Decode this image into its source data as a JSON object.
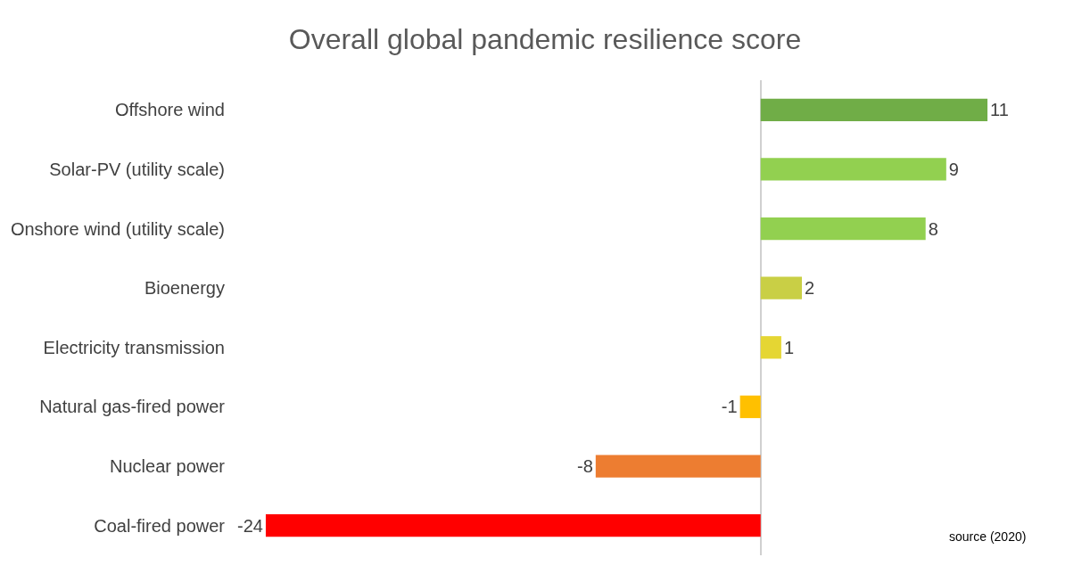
{
  "chart_data": {
    "type": "bar",
    "orientation": "horizontal",
    "title": "Overall global pandemic resilience score",
    "categories": [
      "Offshore wind",
      "Solar-PV (utility scale)",
      "Onshore wind (utility scale)",
      "Bioenergy",
      "Electricity transmission",
      "Natural gas-fired power",
      "Nuclear power",
      "Coal-fired power"
    ],
    "values": [
      11,
      9,
      8,
      2,
      1,
      -1,
      -8,
      -24
    ],
    "colors": [
      "#70ad47",
      "#92d050",
      "#92d050",
      "#c9cf45",
      "#e5d633",
      "#ffc000",
      "#ed7d31",
      "#ff0000"
    ],
    "data_labels": true,
    "tick_labels": "y",
    "annotations": [
      "source (2020)"
    ]
  }
}
